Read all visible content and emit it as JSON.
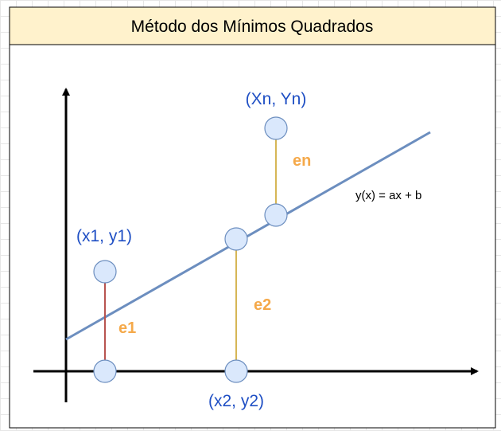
{
  "title": "Método dos Mínimos Quadrados",
  "equation": "y(x) = ax + b",
  "points": {
    "p1": "(x1, y1)",
    "p2": "(x2, y2)",
    "pn": "(Xn, Yn)"
  },
  "errors": {
    "e1": "e1",
    "e2": "e2",
    "en": "en"
  },
  "colors": {
    "title_fill": "#fff2cc",
    "fit_line": "#6c8ebf",
    "point_fill": "#dae8fc",
    "point_stroke": "#6c8ebf",
    "label_blue": "#1f4fc4",
    "error_label": "#f5a94a",
    "error_line_e1": "#b85450",
    "error_line_e2_en": "#d6b656"
  }
}
